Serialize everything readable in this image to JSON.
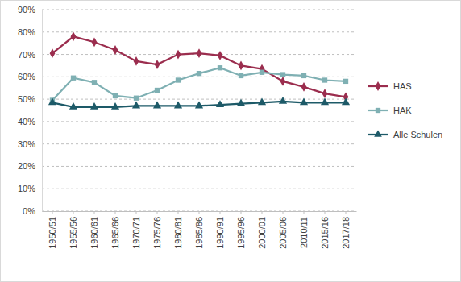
{
  "chart_data": {
    "type": "line",
    "categories": [
      "1950/51",
      "1955/56",
      "1960/61",
      "1965/66",
      "1970/71",
      "1975/76",
      "1980/81",
      "1985/86",
      "1990/91",
      "1995/96",
      "2000/01",
      "2005/06",
      "2010/11",
      "2015/16",
      "2017/18"
    ],
    "series": [
      {
        "name": "HAS",
        "color": "#9b2d4e",
        "marker": "diamond",
        "values": [
          70.5,
          78,
          75.5,
          72,
          67,
          65.5,
          70,
          70.5,
          69.5,
          65,
          63.5,
          58,
          55.5,
          52.5,
          51
        ]
      },
      {
        "name": "HAK",
        "color": "#7fb0b3",
        "marker": "square",
        "values": [
          49.5,
          59.5,
          57.5,
          51.5,
          50.5,
          54,
          58.5,
          61.5,
          64,
          60.5,
          62,
          61,
          60.5,
          58.5,
          58
        ]
      },
      {
        "name": "Alle Schulen",
        "color": "#1d5a68",
        "marker": "triangle",
        "values": [
          48.5,
          46.5,
          46.5,
          46.5,
          47,
          47,
          47,
          47,
          47.5,
          48,
          48.5,
          49,
          48.5,
          48.5,
          48.5
        ]
      }
    ],
    "ylim": [
      0,
      90
    ],
    "yticks": [
      {
        "value": 0,
        "label": "0%"
      },
      {
        "value": 10,
        "label": "10%"
      },
      {
        "value": 20,
        "label": "20%"
      },
      {
        "value": 30,
        "label": "30%"
      },
      {
        "value": 40,
        "label": "40%"
      },
      {
        "value": 50,
        "label": "50%"
      },
      {
        "value": 60,
        "label": "60%"
      },
      {
        "value": 70,
        "label": "70%"
      },
      {
        "value": 80,
        "label": "80%"
      },
      {
        "value": 90,
        "label": "90%"
      }
    ],
    "grid": true,
    "legend": "right"
  }
}
